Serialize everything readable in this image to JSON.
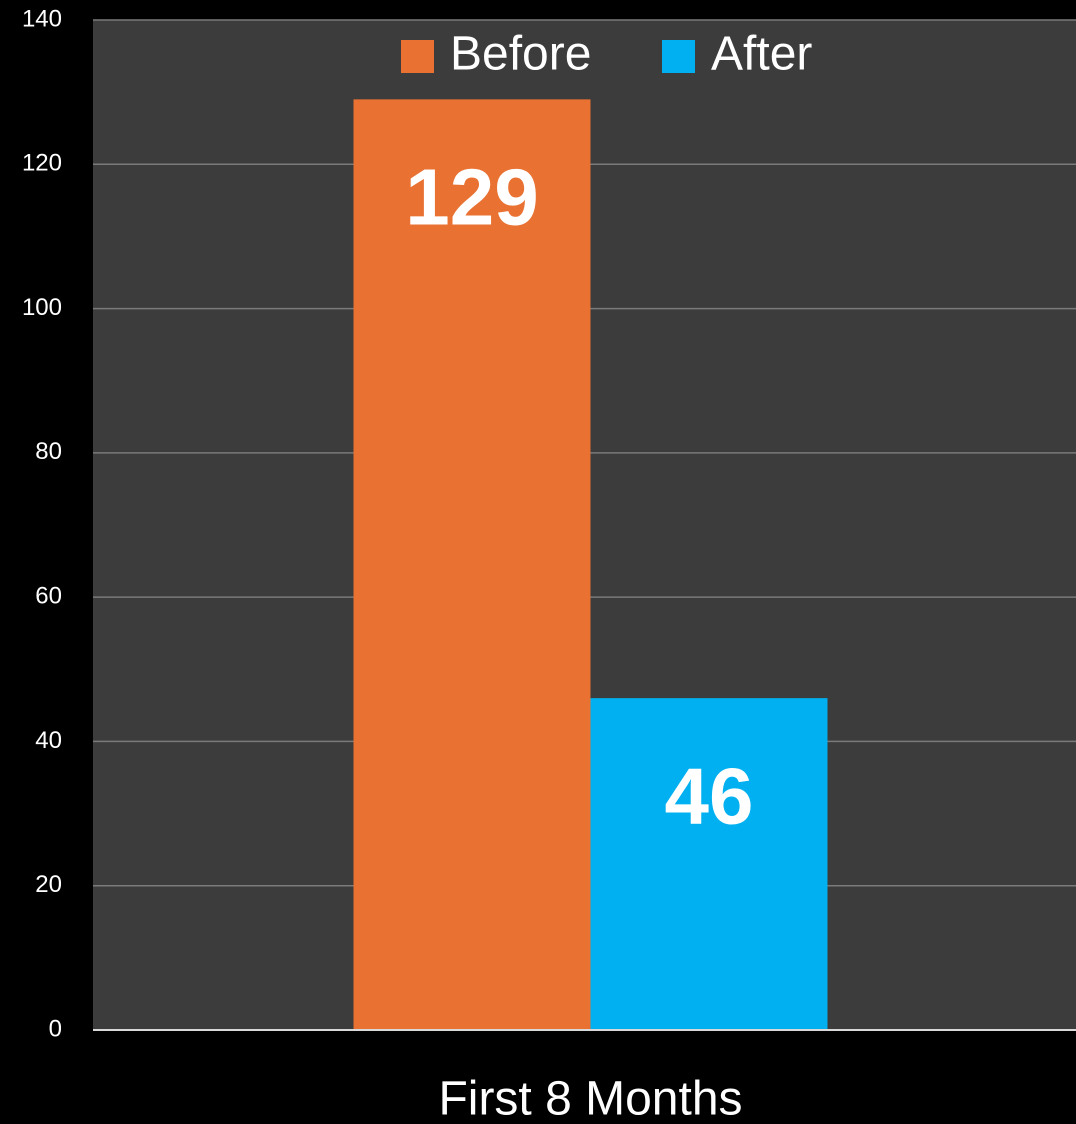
{
  "chart_data": {
    "type": "bar",
    "categories": [
      "First 8 Months"
    ],
    "series": [
      {
        "name": "Before",
        "color": "#e97132",
        "values": [
          129
        ]
      },
      {
        "name": "After",
        "color": "#00b0f0",
        "values": [
          46
        ]
      }
    ],
    "ylim": [
      0,
      140
    ],
    "yticks": [
      0,
      20,
      40,
      60,
      80,
      100,
      120,
      140
    ],
    "grid": true,
    "legend": "top"
  }
}
